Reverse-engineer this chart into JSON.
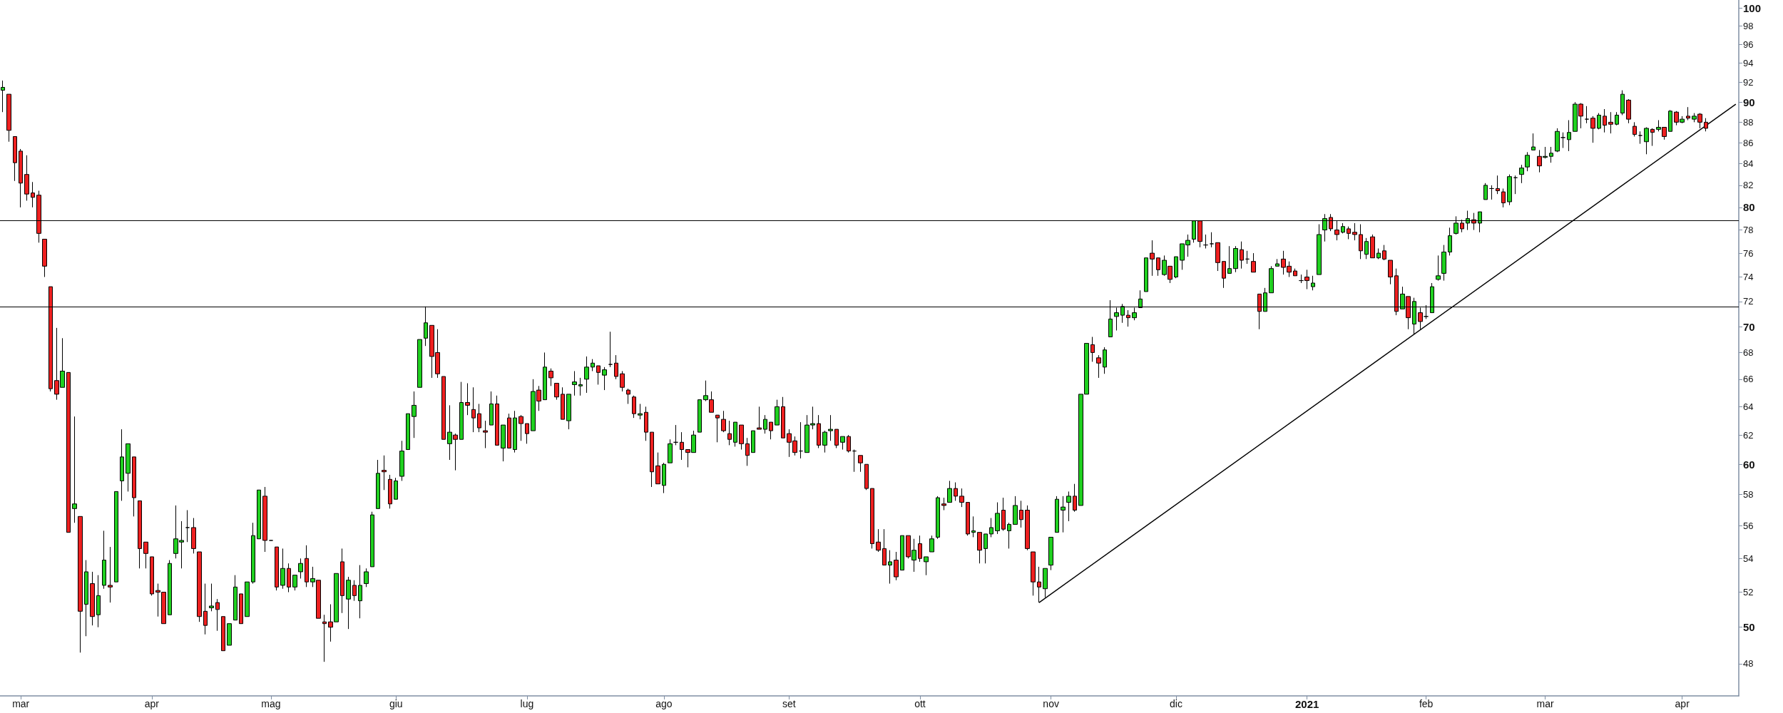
{
  "chart_data": {
    "type": "candlestick",
    "log": true,
    "categories": [
      null,
      null,
      null,
      "mar",
      null,
      null,
      null,
      null,
      null,
      null,
      null,
      null,
      null,
      null,
      null,
      null,
      null,
      null,
      null,
      null,
      null,
      null,
      null,
      null,
      null,
      "apr",
      null,
      null,
      null,
      null,
      null,
      null,
      null,
      null,
      null,
      null,
      null,
      null,
      null,
      null,
      null,
      null,
      null,
      null,
      null,
      "mag",
      null,
      null,
      null,
      null,
      null,
      null,
      null,
      null,
      null,
      null,
      null,
      null,
      null,
      null,
      null,
      null,
      null,
      null,
      null,
      null,
      "giu",
      null,
      null,
      null,
      null,
      null,
      null,
      null,
      null,
      null,
      null,
      null,
      null,
      null,
      null,
      null,
      null,
      null,
      null,
      null,
      null,
      null,
      "lug",
      null,
      null,
      null,
      null,
      null,
      null,
      null,
      null,
      null,
      null,
      null,
      null,
      null,
      null,
      null,
      null,
      null,
      null,
      null,
      null,
      null,
      null,
      "ago",
      null,
      null,
      null,
      null,
      null,
      null,
      null,
      null,
      null,
      null,
      null,
      null,
      null,
      null,
      null,
      null,
      null,
      null,
      null,
      null,
      "set",
      null,
      null,
      null,
      null,
      null,
      null,
      null,
      null,
      null,
      null,
      null,
      null,
      null,
      null,
      null,
      null,
      null,
      null,
      null,
      null,
      null,
      "ott",
      null,
      null,
      null,
      null,
      null,
      null,
      null,
      null,
      null,
      null,
      null,
      null,
      null,
      null,
      null,
      null,
      null,
      null,
      null,
      null,
      null,
      "nov",
      null,
      null,
      null,
      null,
      null,
      null,
      null,
      null,
      null,
      null,
      null,
      null,
      null,
      null,
      null,
      null,
      null,
      null,
      null,
      null,
      "dic",
      null,
      null,
      null,
      null,
      null,
      null,
      null,
      null,
      null,
      null,
      null,
      null,
      null,
      null,
      null,
      null,
      null,
      null,
      null,
      null,
      null,
      "2021",
      null,
      null,
      null,
      null,
      null,
      null,
      null,
      null,
      null,
      null,
      null,
      null,
      null,
      null,
      null,
      null,
      null,
      null,
      null,
      "feb",
      null,
      null,
      null,
      null,
      null,
      null,
      null,
      null,
      null,
      null,
      null,
      null,
      null,
      null,
      null,
      null,
      null,
      null,
      null,
      "mar",
      null,
      null,
      null,
      null,
      null,
      null,
      null,
      null,
      null,
      null,
      null,
      null,
      null,
      null,
      null,
      null,
      null,
      null,
      null,
      null,
      null,
      null,
      "apr",
      null,
      null,
      null,
      null,
      null,
      null,
      null,
      null,
      null
    ],
    "ohlc": [
      [
        91.2,
        92.2,
        89.0,
        91.5
      ],
      [
        90.8,
        90.8,
        86.1,
        87.2
      ],
      [
        86.6,
        86.6,
        82.4,
        84.1
      ],
      [
        85.2,
        85.4,
        80.0,
        82.2
      ],
      [
        83.0,
        84.8,
        80.6,
        81.2
      ],
      [
        81.3,
        82.3,
        80.0,
        80.9
      ],
      [
        81.1,
        81.5,
        76.9,
        77.7
      ],
      [
        77.2,
        77.2,
        74.0,
        74.9
      ],
      [
        73.2,
        73.2,
        65.1,
        65.3
      ],
      [
        65.9,
        69.9,
        64.5,
        64.9
      ],
      [
        65.4,
        69.1,
        65.4,
        66.6
      ],
      [
        66.5,
        66.5,
        55.6,
        55.6
      ],
      [
        57.1,
        63.3,
        56.2,
        57.4
      ],
      [
        56.6,
        56.6,
        48.6,
        50.9
      ],
      [
        51.3,
        53.9,
        49.5,
        53.2
      ],
      [
        52.5,
        53.2,
        50.1,
        50.6
      ],
      [
        50.7,
        53.0,
        50.0,
        51.8
      ],
      [
        52.4,
        55.7,
        52.2,
        53.9
      ],
      [
        52.4,
        54.7,
        51.4,
        52.3
      ],
      [
        52.6,
        58.2,
        52.6,
        58.2
      ],
      [
        58.9,
        62.4,
        57.6,
        60.5
      ],
      [
        59.4,
        61.4,
        58.2,
        61.4
      ],
      [
        60.5,
        60.5,
        56.6,
        57.8
      ],
      [
        57.6,
        57.6,
        53.4,
        54.6
      ],
      [
        55.0,
        55.0,
        53.4,
        54.3
      ],
      [
        54.1,
        54.1,
        51.8,
        51.9
      ],
      [
        52.1,
        52.5,
        50.6,
        52.0
      ],
      [
        52.0,
        52.0,
        50.2,
        50.2
      ],
      [
        50.7,
        53.9,
        50.7,
        53.7
      ],
      [
        54.3,
        57.3,
        54.0,
        55.2
      ],
      [
        55.0,
        56.3,
        53.4,
        55.1
      ],
      [
        55.9,
        57.0,
        55.0,
        55.9
      ],
      [
        55.9,
        56.5,
        54.3,
        54.6
      ],
      [
        54.4,
        54.4,
        50.3,
        50.6
      ],
      [
        50.9,
        52.5,
        49.6,
        50.1
      ],
      [
        51.1,
        52.5,
        50.9,
        51.2
      ],
      [
        51.4,
        51.6,
        49.8,
        51.0
      ],
      [
        50.6,
        50.6,
        48.7,
        48.7
      ],
      [
        49.0,
        50.2,
        49.0,
        50.2
      ],
      [
        50.4,
        53.0,
        50.4,
        52.3
      ],
      [
        51.9,
        51.9,
        50.2,
        50.2
      ],
      [
        50.6,
        52.6,
        50.6,
        52.6
      ],
      [
        52.6,
        56.2,
        52.5,
        55.4
      ],
      [
        55.2,
        58.3,
        55.2,
        58.3
      ],
      [
        57.9,
        58.5,
        54.4,
        55.1
      ],
      [
        55.1,
        55.1,
        55.1,
        55.1
      ],
      [
        54.7,
        54.7,
        52.1,
        52.3
      ],
      [
        52.4,
        54.6,
        52.2,
        53.4
      ],
      [
        53.4,
        53.7,
        52.0,
        52.3
      ],
      [
        52.3,
        53.0,
        52.1,
        53.0
      ],
      [
        53.2,
        54.0,
        52.8,
        53.7
      ],
      [
        54.0,
        54.8,
        52.3,
        52.6
      ],
      [
        52.6,
        53.5,
        52.3,
        52.8
      ],
      [
        52.7,
        52.7,
        50.5,
        50.5
      ],
      [
        50.3,
        50.7,
        48.1,
        50.2
      ],
      [
        50.3,
        51.3,
        49.2,
        50.0
      ],
      [
        50.3,
        53.1,
        50.3,
        53.1
      ],
      [
        53.8,
        54.6,
        50.8,
        51.8
      ],
      [
        51.6,
        52.9,
        49.9,
        52.7
      ],
      [
        52.4,
        52.7,
        51.5,
        51.8
      ],
      [
        51.5,
        53.6,
        50.5,
        52.4
      ],
      [
        52.5,
        53.4,
        52.3,
        53.2
      ],
      [
        53.5,
        56.9,
        53.5,
        56.7
      ],
      [
        57.1,
        60.3,
        57.1,
        59.4
      ],
      [
        59.6,
        60.6,
        58.3,
        59.5
      ],
      [
        59.0,
        59.3,
        57.1,
        57.4
      ],
      [
        57.7,
        59.1,
        57.7,
        58.9
      ],
      [
        59.2,
        61.6,
        58.9,
        60.9
      ],
      [
        61.0,
        63.5,
        61.0,
        63.5
      ],
      [
        63.3,
        65.1,
        61.8,
        64.1
      ],
      [
        65.4,
        69.0,
        65.4,
        69.0
      ],
      [
        69.1,
        71.6,
        68.5,
        70.3
      ],
      [
        70.1,
        70.1,
        66.1,
        67.7
      ],
      [
        68.0,
        69.8,
        66.1,
        66.4
      ],
      [
        66.2,
        66.2,
        61.7,
        61.7
      ],
      [
        61.4,
        64.1,
        60.3,
        62.2
      ],
      [
        62.0,
        62.1,
        59.6,
        61.7
      ],
      [
        61.7,
        65.8,
        61.7,
        64.3
      ],
      [
        64.3,
        65.7,
        63.4,
        64.1
      ],
      [
        63.8,
        65.4,
        62.2,
        63.2
      ],
      [
        63.5,
        64.2,
        62.2,
        62.5
      ],
      [
        62.3,
        63.0,
        61.1,
        62.2
      ],
      [
        62.7,
        65.1,
        62.7,
        64.2
      ],
      [
        64.2,
        64.8,
        61.3,
        61.3
      ],
      [
        61.1,
        62.7,
        60.2,
        62.7
      ],
      [
        63.2,
        63.5,
        61.1,
        61.1
      ],
      [
        61.0,
        63.7,
        60.8,
        63.2
      ],
      [
        63.3,
        63.4,
        61.6,
        62.8
      ],
      [
        62.8,
        62.8,
        61.4,
        62.1
      ],
      [
        62.3,
        66.0,
        62.3,
        65.1
      ],
      [
        65.2,
        65.5,
        63.7,
        64.4
      ],
      [
        64.5,
        68.0,
        64.5,
        66.9
      ],
      [
        66.6,
        66.8,
        65.5,
        66.1
      ],
      [
        65.7,
        65.7,
        64.5,
        64.7
      ],
      [
        64.9,
        65.4,
        63.1,
        63.1
      ],
      [
        63.0,
        64.9,
        62.4,
        64.9
      ],
      [
        65.6,
        66.6,
        64.8,
        65.8
      ],
      [
        65.5,
        66.1,
        64.8,
        65.6
      ],
      [
        66.0,
        67.7,
        65.0,
        66.9
      ],
      [
        66.9,
        67.5,
        66.6,
        67.2
      ],
      [
        67.0,
        67.0,
        65.6,
        66.5
      ],
      [
        66.3,
        66.9,
        65.2,
        66.7
      ],
      [
        67.1,
        69.6,
        66.9,
        67.1
      ],
      [
        67.2,
        67.8,
        66.0,
        66.2
      ],
      [
        66.4,
        66.6,
        65.1,
        65.4
      ],
      [
        65.2,
        65.3,
        64.2,
        64.9
      ],
      [
        64.7,
        64.8,
        63.2,
        63.5
      ],
      [
        63.4,
        64.2,
        63.1,
        63.5
      ],
      [
        63.6,
        64.0,
        61.6,
        62.2
      ],
      [
        62.2,
        62.2,
        58.5,
        59.5
      ],
      [
        59.9,
        60.8,
        58.7,
        58.7
      ],
      [
        58.6,
        60.1,
        58.1,
        60.0
      ],
      [
        60.1,
        61.7,
        60.1,
        61.4
      ],
      [
        61.5,
        62.7,
        61.3,
        61.5
      ],
      [
        61.5,
        62.2,
        60.3,
        61.0
      ],
      [
        61.0,
        61.0,
        59.8,
        60.8
      ],
      [
        60.8,
        62.3,
        60.8,
        62.0
      ],
      [
        62.2,
        64.5,
        62.2,
        64.5
      ],
      [
        64.5,
        65.9,
        64.4,
        64.8
      ],
      [
        64.5,
        65.1,
        63.6,
        63.6
      ],
      [
        63.4,
        63.4,
        61.5,
        63.2
      ],
      [
        63.1,
        63.7,
        62.2,
        62.3
      ],
      [
        62.1,
        63.0,
        61.3,
        61.7
      ],
      [
        61.5,
        62.9,
        61.2,
        62.9
      ],
      [
        62.7,
        62.7,
        61.0,
        61.4
      ],
      [
        61.4,
        61.8,
        59.9,
        60.6
      ],
      [
        60.8,
        62.3,
        60.8,
        62.3
      ],
      [
        62.5,
        64.0,
        62.4,
        62.4
      ],
      [
        62.4,
        63.4,
        62.1,
        63.1
      ],
      [
        62.9,
        62.9,
        61.7,
        62.3
      ],
      [
        62.7,
        64.5,
        62.7,
        64.0
      ],
      [
        64.0,
        64.7,
        61.8,
        61.8
      ],
      [
        62.1,
        62.4,
        60.5,
        61.5
      ],
      [
        61.6,
        61.9,
        60.6,
        60.8
      ],
      [
        60.9,
        62.9,
        60.4,
        60.9
      ],
      [
        60.8,
        63.4,
        60.8,
        62.7
      ],
      [
        62.7,
        64.0,
        62.4,
        62.8
      ],
      [
        62.8,
        63.4,
        61.1,
        61.3
      ],
      [
        61.3,
        62.3,
        60.8,
        62.2
      ],
      [
        62.3,
        63.4,
        61.6,
        62.4
      ],
      [
        62.4,
        62.4,
        61.1,
        61.3
      ],
      [
        61.5,
        61.9,
        61.0,
        61.9
      ],
      [
        61.9,
        62.0,
        60.8,
        60.9
      ],
      [
        60.9,
        61.0,
        59.5,
        60.9
      ],
      [
        60.6,
        60.6,
        59.5,
        60.1
      ],
      [
        60.0,
        60.0,
        58.3,
        58.4
      ],
      [
        58.4,
        58.4,
        54.6,
        54.9
      ],
      [
        55.0,
        55.8,
        54.4,
        54.5
      ],
      [
        54.6,
        55.8,
        53.6,
        53.6
      ],
      [
        53.6,
        54.5,
        52.5,
        53.8
      ],
      [
        53.9,
        54.4,
        52.7,
        52.9
      ],
      [
        53.3,
        55.4,
        53.3,
        55.4
      ],
      [
        55.4,
        55.4,
        54.0,
        54.1
      ],
      [
        53.9,
        55.2,
        53.2,
        54.5
      ],
      [
        54.9,
        55.4,
        53.8,
        54.0
      ],
      [
        53.8,
        54.1,
        53.0,
        54.1
      ],
      [
        54.4,
        55.4,
        54.4,
        55.2
      ],
      [
        55.3,
        57.9,
        55.2,
        57.8
      ],
      [
        57.4,
        57.8,
        57.0,
        57.3
      ],
      [
        57.5,
        58.9,
        57.5,
        58.4
      ],
      [
        58.4,
        58.8,
        57.6,
        57.9
      ],
      [
        57.9,
        58.4,
        57.2,
        57.5
      ],
      [
        57.5,
        57.5,
        55.4,
        55.5
      ],
      [
        55.6,
        56.6,
        55.3,
        55.7
      ],
      [
        55.6,
        55.6,
        53.7,
        54.5
      ],
      [
        54.6,
        55.5,
        53.7,
        55.5
      ],
      [
        55.5,
        56.5,
        55.3,
        55.9
      ],
      [
        55.7,
        57.5,
        55.5,
        56.8
      ],
      [
        57.0,
        57.8,
        55.7,
        55.8
      ],
      [
        55.7,
        56.2,
        54.6,
        56.1
      ],
      [
        56.1,
        57.9,
        56.1,
        57.3
      ],
      [
        57.0,
        57.6,
        55.9,
        56.4
      ],
      [
        57.0,
        57.3,
        54.5,
        54.6
      ],
      [
        54.4,
        54.4,
        51.8,
        52.6
      ],
      [
        52.6,
        53.5,
        51.4,
        52.3
      ],
      [
        52.2,
        53.4,
        51.7,
        53.4
      ],
      [
        53.6,
        55.3,
        53.3,
        55.3
      ],
      [
        55.6,
        57.9,
        55.6,
        57.7
      ],
      [
        57.0,
        57.9,
        55.6,
        57.2
      ],
      [
        57.5,
        58.2,
        56.3,
        57.9
      ],
      [
        57.9,
        58.7,
        56.9,
        57.0
      ],
      [
        57.3,
        64.9,
        57.3,
        64.9
      ],
      [
        64.9,
        68.7,
        64.9,
        68.7
      ],
      [
        68.6,
        69.2,
        67.3,
        68.0
      ],
      [
        67.6,
        67.8,
        66.1,
        67.2
      ],
      [
        66.9,
        68.4,
        66.4,
        68.2
      ],
      [
        69.2,
        72.1,
        69.2,
        70.6
      ],
      [
        70.8,
        71.5,
        69.7,
        71.1
      ],
      [
        70.9,
        71.8,
        70.3,
        71.6
      ],
      [
        70.9,
        71.3,
        70.0,
        70.7
      ],
      [
        70.7,
        71.5,
        70.5,
        71.1
      ],
      [
        71.5,
        72.9,
        71.5,
        72.2
      ],
      [
        72.8,
        75.6,
        72.8,
        75.6
      ],
      [
        76.0,
        77.1,
        74.1,
        75.5
      ],
      [
        75.6,
        75.6,
        74.1,
        74.6
      ],
      [
        74.2,
        75.8,
        74.1,
        75.4
      ],
      [
        74.9,
        74.9,
        73.5,
        73.8
      ],
      [
        74.0,
        75.7,
        73.9,
        75.7
      ],
      [
        75.4,
        76.8,
        74.6,
        76.8
      ],
      [
        76.7,
        77.6,
        75.7,
        77.1
      ],
      [
        77.2,
        78.8,
        76.9,
        78.8
      ],
      [
        78.8,
        78.8,
        76.5,
        77.0
      ],
      [
        76.7,
        77.6,
        76.4,
        76.7
      ],
      [
        76.8,
        77.8,
        76.5,
        76.8
      ],
      [
        76.9,
        76.9,
        74.5,
        75.2
      ],
      [
        75.3,
        75.3,
        73.1,
        73.9
      ],
      [
        74.3,
        76.6,
        74.3,
        74.7
      ],
      [
        74.7,
        76.6,
        74.4,
        76.4
      ],
      [
        76.3,
        77.0,
        74.7,
        75.4
      ],
      [
        75.5,
        76.2,
        75.1,
        75.5
      ],
      [
        75.3,
        76.0,
        74.4,
        74.4
      ],
      [
        72.6,
        72.6,
        69.8,
        71.2
      ],
      [
        71.2,
        73.1,
        71.2,
        72.7
      ],
      [
        72.7,
        74.9,
        72.7,
        74.7
      ],
      [
        74.9,
        75.5,
        74.9,
        75.1
      ],
      [
        75.5,
        76.2,
        74.2,
        74.8
      ],
      [
        74.9,
        75.3,
        74.0,
        74.4
      ],
      [
        74.5,
        74.7,
        74.1,
        74.1
      ],
      [
        73.7,
        74.2,
        73.5,
        73.7
      ],
      [
        74.0,
        74.6,
        73.0,
        73.7
      ],
      [
        73.2,
        74.1,
        72.9,
        73.5
      ],
      [
        74.2,
        78.5,
        74.2,
        77.6
      ],
      [
        78.0,
        79.4,
        77.0,
        79.0
      ],
      [
        79.1,
        79.4,
        77.9,
        78.1
      ],
      [
        78.0,
        78.8,
        77.1,
        77.6
      ],
      [
        77.8,
        78.6,
        77.7,
        78.3
      ],
      [
        78.1,
        78.3,
        77.2,
        77.7
      ],
      [
        77.8,
        78.6,
        77.1,
        77.6
      ],
      [
        77.6,
        78.5,
        75.5,
        76.2
      ],
      [
        75.9,
        77.3,
        75.5,
        77.0
      ],
      [
        77.4,
        77.6,
        75.6,
        75.6
      ],
      [
        75.6,
        76.4,
        75.5,
        76.0
      ],
      [
        76.2,
        76.7,
        75.4,
        75.5
      ],
      [
        75.4,
        75.4,
        73.4,
        74.0
      ],
      [
        74.1,
        74.7,
        70.9,
        71.2
      ],
      [
        71.4,
        73.2,
        71.4,
        72.6
      ],
      [
        72.4,
        72.4,
        69.8,
        70.7
      ],
      [
        70.2,
        72.3,
        69.4,
        72.0
      ],
      [
        71.1,
        71.5,
        69.8,
        70.4
      ],
      [
        70.8,
        71.7,
        70.6,
        70.8
      ],
      [
        71.1,
        73.5,
        71.1,
        73.2
      ],
      [
        73.8,
        75.8,
        73.7,
        74.1
      ],
      [
        74.3,
        76.7,
        73.7,
        76.1
      ],
      [
        76.1,
        78.2,
        75.8,
        77.5
      ],
      [
        77.7,
        79.2,
        77.6,
        78.6
      ],
      [
        78.6,
        78.9,
        77.8,
        78.1
      ],
      [
        78.6,
        79.7,
        78.0,
        79.0
      ],
      [
        78.9,
        79.5,
        78.0,
        78.6
      ],
      [
        78.6,
        79.6,
        77.8,
        79.6
      ],
      [
        80.7,
        82.2,
        80.7,
        82.0
      ],
      [
        81.7,
        82.0,
        80.7,
        81.7
      ],
      [
        81.7,
        82.9,
        81.2,
        81.5
      ],
      [
        81.4,
        81.7,
        80.0,
        80.4
      ],
      [
        80.5,
        83.0,
        80.2,
        82.8
      ],
      [
        82.7,
        82.9,
        81.2,
        82.7
      ],
      [
        83.0,
        83.9,
        82.2,
        83.6
      ],
      [
        83.7,
        85.1,
        83.3,
        84.8
      ],
      [
        85.3,
        86.9,
        85.3,
        85.6
      ],
      [
        84.7,
        85.3,
        83.2,
        83.8
      ],
      [
        84.6,
        85.6,
        84.5,
        84.7
      ],
      [
        84.7,
        85.6,
        84.1,
        85.0
      ],
      [
        85.2,
        87.4,
        85.1,
        87.1
      ],
      [
        86.5,
        87.0,
        85.5,
        86.5
      ],
      [
        86.3,
        88.2,
        85.2,
        87.0
      ],
      [
        87.1,
        90.0,
        87.1,
        89.8
      ],
      [
        89.8,
        89.9,
        87.4,
        88.6
      ],
      [
        88.3,
        89.6,
        87.9,
        88.3
      ],
      [
        88.4,
        88.6,
        86.0,
        87.4
      ],
      [
        87.4,
        88.9,
        87.3,
        88.7
      ],
      [
        88.6,
        89.3,
        87.0,
        87.7
      ],
      [
        88.0,
        89.0,
        86.9,
        87.8
      ],
      [
        87.8,
        89.0,
        87.7,
        88.7
      ],
      [
        88.9,
        91.2,
        88.7,
        90.8
      ],
      [
        90.2,
        90.3,
        87.9,
        88.3
      ],
      [
        87.6,
        88.0,
        86.6,
        86.8
      ],
      [
        86.7,
        87.1,
        85.9,
        86.7
      ],
      [
        86.1,
        87.5,
        84.9,
        87.4
      ],
      [
        87.3,
        87.4,
        85.7,
        87.0
      ],
      [
        87.3,
        88.2,
        87.1,
        87.5
      ],
      [
        87.5,
        87.5,
        86.3,
        86.6
      ],
      [
        87.1,
        89.2,
        87.1,
        89.1
      ],
      [
        89.0,
        89.1,
        87.7,
        88.0
      ],
      [
        88.0,
        88.6,
        87.9,
        88.3
      ],
      [
        88.6,
        89.5,
        88.2,
        88.4
      ],
      [
        88.3,
        88.9,
        88.0,
        88.6
      ],
      [
        88.8,
        88.9,
        87.4,
        88.0
      ],
      [
        88.0,
        88.4,
        87.1,
        87.4
      ],
      null,
      null,
      null,
      null,
      null
    ],
    "colors": [
      "#20d020",
      "#ee2020",
      "#ee2020",
      "#ee2020",
      "#ee2020",
      "#ee2020",
      "#ee2020",
      "#ee2020",
      "#ee2020",
      "#ee2020",
      "#20d020",
      "#ee2020",
      "#20d020",
      "#ee2020",
      "#20d020",
      "#ee2020",
      "#20d020",
      "#20d020",
      "#ee2020",
      "#20d020",
      "#20d020",
      "#20d020",
      "#ee2020",
      "#ee2020",
      "#ee2020",
      "#ee2020",
      "#ee2020",
      "#ee2020",
      "#20d020",
      "#20d020",
      "#20d020",
      "#000000",
      "#ee2020",
      "#ee2020",
      "#ee2020",
      "#20d020",
      "#ee2020",
      "#ee2020",
      "#20d020",
      "#20d020",
      "#ee2020",
      "#20d020",
      "#20d020",
      "#20d020",
      "#ee2020",
      "#000000",
      "#ee2020",
      "#20d020",
      "#ee2020",
      "#20d020",
      "#20d020",
      "#ee2020",
      "#20d020",
      "#ee2020",
      "#ee2020",
      "#ee2020",
      "#20d020",
      "#ee2020",
      "#20d020",
      "#ee2020",
      "#20d020",
      "#20d020",
      "#20d020",
      "#20d020",
      "#ee2020",
      "#ee2020",
      "#20d020",
      "#20d020",
      "#20d020",
      "#20d020",
      "#20d020",
      "#20d020",
      "#ee2020",
      "#ee2020",
      "#ee2020",
      "#20d020",
      "#ee2020",
      "#20d020",
      "#ee2020",
      "#ee2020",
      "#ee2020",
      "#ee2020",
      "#20d020",
      "#ee2020",
      "#20d020",
      "#ee2020",
      "#20d020",
      "#ee2020",
      "#ee2020",
      "#20d020",
      "#ee2020",
      "#20d020",
      "#ee2020",
      "#ee2020",
      "#ee2020",
      "#20d020",
      "#20d020",
      "#20d020",
      "#20d020",
      "#20d020",
      "#ee2020",
      "#20d020",
      "#000000",
      "#ee2020",
      "#ee2020",
      "#ee2020",
      "#ee2020",
      "#20d020",
      "#ee2020",
      "#ee2020",
      "#ee2020",
      "#20d020",
      "#20d020",
      "#000000",
      "#ee2020",
      "#ee2020",
      "#20d020",
      "#20d020",
      "#20d020",
      "#ee2020",
      "#ee2020",
      "#ee2020",
      "#ee2020",
      "#20d020",
      "#ee2020",
      "#ee2020",
      "#20d020",
      "#ee2020",
      "#20d020",
      "#ee2020",
      "#20d020",
      "#ee2020",
      "#ee2020",
      "#ee2020",
      "#000000",
      "#20d020",
      "#20d020",
      "#ee2020",
      "#20d020",
      "#20d020",
      "#ee2020",
      "#20d020",
      "#ee2020",
      "#000000",
      "#ee2020",
      "#ee2020",
      "#ee2020",
      "#ee2020",
      "#ee2020",
      "#20d020",
      "#ee2020",
      "#20d020",
      "#ee2020",
      "#20d020",
      "#ee2020",
      "#20d020",
      "#20d020",
      "#20d020",
      "#ee2020",
      "#20d020",
      "#ee2020",
      "#ee2020",
      "#ee2020",
      "#20d020",
      "#ee2020",
      "#20d020",
      "#20d020",
      "#20d020",
      "#ee2020",
      "#20d020",
      "#20d020",
      "#ee2020",
      "#ee2020",
      "#ee2020",
      "#ee2020",
      "#20d020",
      "#20d020",
      "#20d020",
      "#20d020",
      "#20d020",
      "#ee2020",
      "#20d020",
      "#20d020",
      "#ee2020",
      "#ee2020",
      "#20d020",
      "#20d020",
      "#20d020",
      "#20d020",
      "#ee2020",
      "#20d020",
      "#20d020",
      "#20d020",
      "#ee2020",
      "#ee2020",
      "#20d020",
      "#ee2020",
      "#20d020",
      "#20d020",
      "#20d020",
      "#20d020",
      "#ee2020",
      "#000000",
      "#000000",
      "#ee2020",
      "#ee2020",
      "#20d020",
      "#20d020",
      "#ee2020",
      "#000000",
      "#ee2020",
      "#ee2020",
      "#20d020",
      "#20d020",
      "#20d020",
      "#ee2020",
      "#ee2020",
      "#ee2020",
      "#000000",
      "#ee2020",
      "#20d020",
      "#20d020",
      "#20d020",
      "#ee2020",
      "#ee2020",
      "#20d020",
      "#ee2020",
      "#ee2020",
      "#ee2020",
      "#20d020",
      "#ee2020",
      "#20d020",
      "#ee2020",
      "#ee2020",
      "#ee2020",
      "#20d020",
      "#ee2020",
      "#20d020",
      "#ee2020",
      "#000000",
      "#20d020",
      "#20d020",
      "#20d020",
      "#20d020",
      "#20d020",
      "#ee2020",
      "#20d020",
      "#ee2020",
      "#20d020",
      "#20d020",
      "#000000",
      "#ee2020",
      "#ee2020",
      "#20d020",
      "#000000",
      "#20d020",
      "#20d020",
      "#20d020",
      "#ee2020",
      "#20d020",
      "#20d020",
      "#20d020",
      "#000000",
      "#20d020",
      "#20d020",
      "#ee2020",
      "#000000",
      "#ee2020",
      "#20d020",
      "#ee2020",
      "#ee2020",
      "#20d020",
      "#20d020",
      "#ee2020",
      "#ee2020",
      "#000000",
      "#20d020",
      "#ee2020",
      "#20d020",
      "#ee2020",
      "#20d020",
      "#ee2020",
      "#20d020",
      "#ee2020",
      "#20d020",
      "#ee2020",
      "#ee2020",
      null,
      null,
      null,
      null,
      null
    ],
    "series": [
      {
        "type": "line",
        "color": "#000000",
        "values": [
          null,
          null,
          null,
          null,
          null,
          null,
          null,
          null,
          null,
          null,
          null,
          null,
          null,
          null,
          null,
          null,
          null,
          null,
          null,
          null,
          null,
          null,
          null,
          null,
          null,
          null,
          null,
          null,
          null,
          null,
          null,
          null,
          null,
          null,
          null,
          null,
          null,
          null,
          null,
          null,
          null,
          null,
          null,
          null,
          null,
          null,
          null,
          null,
          null,
          null,
          null,
          null,
          null,
          null,
          null,
          null,
          null,
          null,
          null,
          null,
          null,
          null,
          null,
          null,
          null,
          null,
          null,
          null,
          null,
          null,
          null,
          null,
          null,
          null,
          null,
          null,
          null,
          null,
          null,
          null,
          null,
          null,
          null,
          null,
          null,
          null,
          null,
          null,
          null,
          null,
          null,
          null,
          null,
          null,
          null,
          null,
          null,
          null,
          null,
          null,
          null,
          null,
          null,
          null,
          null,
          null,
          null,
          null,
          null,
          null,
          null,
          null,
          null,
          null,
          null,
          null,
          null,
          null,
          null,
          null,
          null,
          null,
          null,
          null,
          null,
          null,
          null,
          null,
          null,
          null,
          null,
          null,
          null,
          null,
          null,
          null,
          null,
          null,
          null,
          null,
          null,
          null,
          null,
          null,
          null,
          null,
          null,
          null,
          null,
          null,
          null,
          null,
          null,
          null,
          null,
          null,
          null,
          null,
          null,
          null,
          null,
          null,
          null,
          null,
          null,
          null,
          null,
          null,
          null,
          null,
          null,
          null,
          null,
          null,
          51.4,
          null,
          null,
          null,
          null,
          null,
          null,
          null,
          null,
          null,
          null,
          null,
          null,
          null,
          null,
          null,
          null,
          null,
          null,
          null,
          null,
          null,
          null,
          null,
          null,
          null,
          null,
          null,
          null,
          null,
          null,
          null,
          null,
          null,
          null,
          null,
          null,
          null,
          null,
          null,
          null,
          null,
          null,
          null,
          null,
          null,
          null,
          null,
          null,
          null,
          null,
          null,
          null,
          null,
          null,
          null,
          null,
          null,
          null,
          null,
          null,
          null,
          null,
          null,
          null,
          null,
          null,
          null,
          null,
          null,
          null,
          null,
          null,
          null,
          null,
          null,
          null,
          null,
          null,
          null,
          null,
          null,
          null,
          null,
          null,
          null,
          null,
          null,
          null,
          null,
          null,
          null,
          null,
          null,
          null,
          null,
          null,
          null,
          null,
          null,
          null,
          null,
          null,
          null,
          null,
          null,
          null,
          null,
          null,
          null,
          null,
          null,
          null,
          null,
          null,
          null,
          null,
          89.8
        ]
      }
    ],
    "ylim": [
      46.3,
      100.9
    ],
    "yticks": [
      48,
      50,
      52,
      54,
      56,
      58,
      60,
      62,
      64,
      66,
      68,
      70,
      72,
      74,
      76,
      78,
      80,
      82,
      84,
      86,
      88,
      90,
      92,
      94,
      96,
      98,
      100
    ],
    "ref_lines": [
      {
        "axis": "y",
        "value": 78.8,
        "color": "#000000"
      },
      {
        "axis": "y",
        "value": 71.6,
        "color": "#000000"
      }
    ]
  }
}
